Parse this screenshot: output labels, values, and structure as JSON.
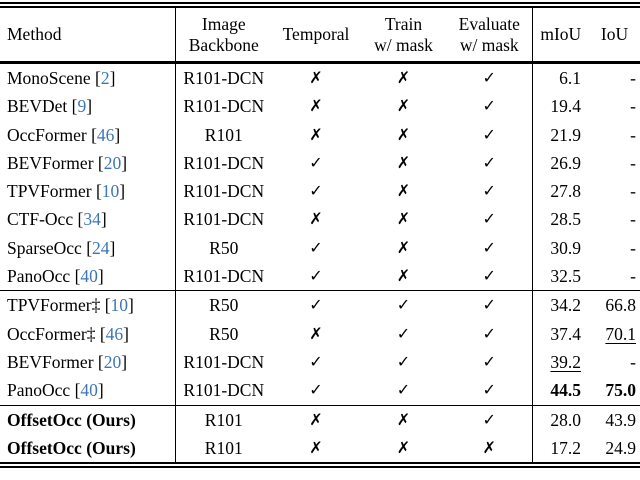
{
  "header": {
    "method": "Method",
    "backbone_line1": "Image",
    "backbone_line2": "Backbone",
    "temporal": "Temporal",
    "train_line1": "Train",
    "train_line2": "w/ mask",
    "eval_line1": "Evaluate",
    "eval_line2": "w/ mask",
    "miou": "mIoU",
    "iou": "IoU"
  },
  "marks": {
    "check": "✓",
    "cross": "✗",
    "dagger": "‡"
  },
  "colors": {
    "citation_blue": "#3d75b8",
    "text": "#000000",
    "background": "#ffffff",
    "rule": "#000000"
  },
  "table": {
    "groups": [
      {
        "rows": [
          {
            "method": "MonoScene",
            "dagger": false,
            "cite": "2",
            "bold": false,
            "backbone": "R101-DCN",
            "temporal": "cross",
            "train_mask": "cross",
            "eval_mask": "check",
            "miou": "6.1",
            "miou_style": "plain",
            "iou": "-",
            "iou_style": "plain"
          },
          {
            "method": "BEVDet",
            "dagger": false,
            "cite": "9",
            "bold": false,
            "backbone": "R101-DCN",
            "temporal": "cross",
            "train_mask": "cross",
            "eval_mask": "check",
            "miou": "19.4",
            "miou_style": "plain",
            "iou": "-",
            "iou_style": "plain"
          },
          {
            "method": "OccFormer",
            "dagger": false,
            "cite": "46",
            "bold": false,
            "backbone": "R101",
            "temporal": "cross",
            "train_mask": "cross",
            "eval_mask": "check",
            "miou": "21.9",
            "miou_style": "plain",
            "iou": "-",
            "iou_style": "plain"
          },
          {
            "method": "BEVFormer",
            "dagger": false,
            "cite": "20",
            "bold": false,
            "backbone": "R101-DCN",
            "temporal": "check",
            "train_mask": "cross",
            "eval_mask": "check",
            "miou": "26.9",
            "miou_style": "plain",
            "iou": "-",
            "iou_style": "plain"
          },
          {
            "method": "TPVFormer",
            "dagger": false,
            "cite": "10",
            "bold": false,
            "backbone": "R101-DCN",
            "temporal": "check",
            "train_mask": "cross",
            "eval_mask": "check",
            "miou": "27.8",
            "miou_style": "plain",
            "iou": "-",
            "iou_style": "plain"
          },
          {
            "method": "CTF-Occ",
            "dagger": false,
            "cite": "34",
            "bold": false,
            "backbone": "R101-DCN",
            "temporal": "cross",
            "train_mask": "cross",
            "eval_mask": "check",
            "miou": "28.5",
            "miou_style": "plain",
            "iou": "-",
            "iou_style": "plain"
          },
          {
            "method": "SparseOcc",
            "dagger": false,
            "cite": "24",
            "bold": false,
            "backbone": "R50",
            "temporal": "check",
            "train_mask": "cross",
            "eval_mask": "check",
            "miou": "30.9",
            "miou_style": "plain",
            "iou": "-",
            "iou_style": "plain"
          },
          {
            "method": "PanoOcc",
            "dagger": false,
            "cite": "40",
            "bold": false,
            "backbone": "R101-DCN",
            "temporal": "check",
            "train_mask": "cross",
            "eval_mask": "check",
            "miou": "32.5",
            "miou_style": "plain",
            "iou": "-",
            "iou_style": "plain"
          }
        ]
      },
      {
        "rows": [
          {
            "method": "TPVFormer",
            "dagger": true,
            "cite": "10",
            "bold": false,
            "backbone": "R50",
            "temporal": "check",
            "train_mask": "check",
            "eval_mask": "check",
            "miou": "34.2",
            "miou_style": "plain",
            "iou": "66.8",
            "iou_style": "plain"
          },
          {
            "method": "OccFormer",
            "dagger": true,
            "cite": "46",
            "bold": false,
            "backbone": "R50",
            "temporal": "cross",
            "train_mask": "check",
            "eval_mask": "check",
            "miou": "37.4",
            "miou_style": "plain",
            "iou": "70.1",
            "iou_style": "underline"
          },
          {
            "method": "BEVFormer",
            "dagger": false,
            "cite": "20",
            "bold": false,
            "backbone": "R101-DCN",
            "temporal": "check",
            "train_mask": "check",
            "eval_mask": "check",
            "miou": "39.2",
            "miou_style": "underline",
            "iou": "-",
            "iou_style": "plain"
          },
          {
            "method": "PanoOcc",
            "dagger": false,
            "cite": "40",
            "bold": false,
            "backbone": "R101-DCN",
            "temporal": "check",
            "train_mask": "check",
            "eval_mask": "check",
            "miou": "44.5",
            "miou_style": "bold",
            "iou": "75.0",
            "iou_style": "bold"
          }
        ]
      },
      {
        "rows": [
          {
            "method": "OffsetOcc (Ours)",
            "dagger": false,
            "cite": null,
            "bold": true,
            "backbone": "R101",
            "temporal": "cross",
            "train_mask": "cross",
            "eval_mask": "check",
            "miou": "28.0",
            "miou_style": "plain",
            "iou": "43.9",
            "iou_style": "plain"
          },
          {
            "method": "OffsetOcc (Ours)",
            "dagger": false,
            "cite": null,
            "bold": true,
            "backbone": "R101",
            "temporal": "cross",
            "train_mask": "cross",
            "eval_mask": "cross",
            "miou": "17.2",
            "miou_style": "plain",
            "iou": "24.9",
            "iou_style": "plain"
          }
        ]
      }
    ]
  }
}
